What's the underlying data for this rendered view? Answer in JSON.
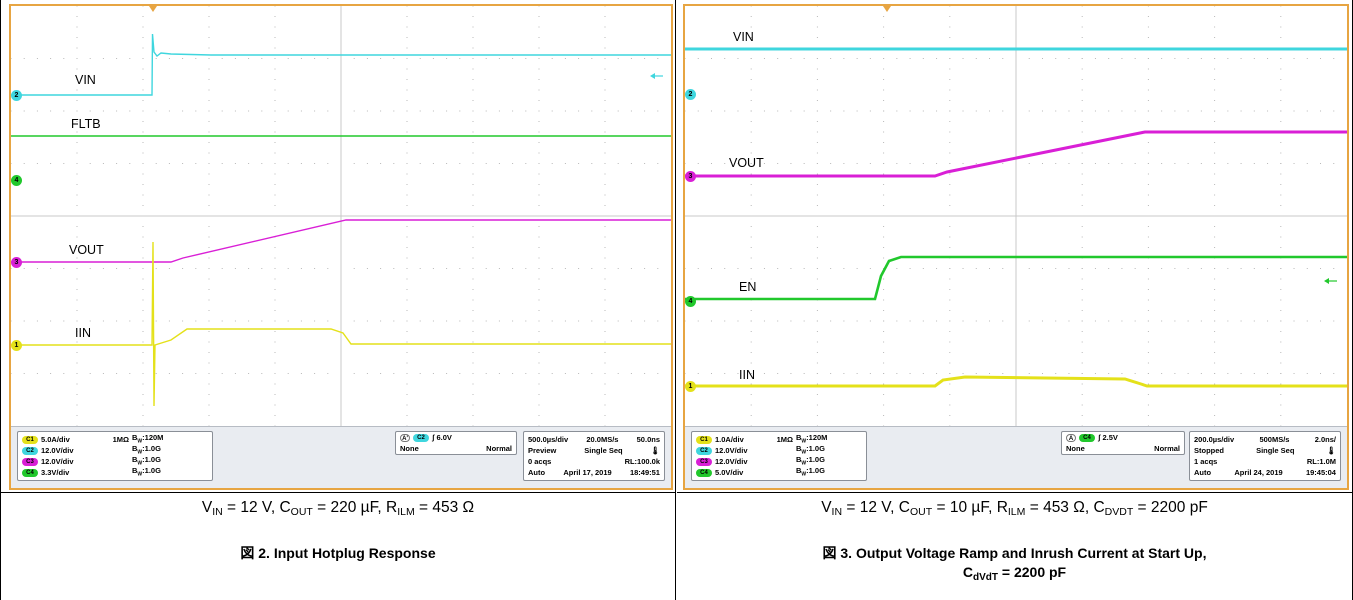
{
  "figures": [
    {
      "traces": [
        {
          "name": "VIN",
          "color": "#3fd6de"
        },
        {
          "name": "FLTB",
          "color": "#21c82c"
        },
        {
          "name": "VOUT",
          "color": "#d91fd6"
        },
        {
          "name": "IIN",
          "color": "#e4e11a"
        }
      ],
      "channel_markers": [
        "2",
        "4",
        "3",
        "1"
      ],
      "vertical_settings": [
        {
          "ch": "C1",
          "color": "#e4e11a",
          "scale": "5.0A/div",
          "impedance": "1MΩ",
          "bw": "120M"
        },
        {
          "ch": "C2",
          "color": "#3fd6de",
          "scale": "12.0V/div",
          "impedance": "",
          "bw": "1.0G"
        },
        {
          "ch": "C3",
          "color": "#d91fd6",
          "scale": "12.0V/div",
          "impedance": "",
          "bw": "1.0G"
        },
        {
          "ch": "C4",
          "color": "#21c82c",
          "scale": "3.3V/div",
          "impedance": "",
          "bw": "1.0G"
        }
      ],
      "bw_prefix": "B",
      "bw_sub": "W",
      "bw_colon": ":",
      "trigger": {
        "type": "A'",
        "source": "C2",
        "level": "6.0V",
        "holdoff": "None",
        "mode": "Normal",
        "source_color": "#3fd6de"
      },
      "timebase": {
        "scale": "500.0µs/div",
        "rate": "20.0MS/s",
        "resolution": "50.0ns",
        "state": "Preview",
        "seq": "Single Seq",
        "acqs": "0 acqs",
        "rl": "RL:100.0k",
        "auto": "Auto",
        "date": "April 17, 2019",
        "time": "18:49:51"
      },
      "conditions": {
        "vin_sym": "V",
        "vin_sub": "IN",
        "vin_val": " = 12 V, ",
        "cout_sym": "C",
        "cout_sub": "OUT",
        "cout_val": " = 220 µF, ",
        "rilm_sym": "R",
        "rilm_sub": "ILM",
        "rilm_val": " = 453 Ω"
      },
      "caption": {
        "prefix": "図 2.",
        "text": "Input Hotplug Response"
      }
    },
    {
      "traces": [
        {
          "name": "VIN",
          "color": "#3fd6de"
        },
        {
          "name": "VOUT",
          "color": "#d91fd6"
        },
        {
          "name": "EN",
          "color": "#21c82c"
        },
        {
          "name": "IIN",
          "color": "#e4e11a"
        }
      ],
      "channel_markers": [
        "2",
        "3",
        "4",
        "1"
      ],
      "vertical_settings": [
        {
          "ch": "C1",
          "color": "#e4e11a",
          "scale": "1.0A/div",
          "impedance": "1MΩ",
          "bw": "120M"
        },
        {
          "ch": "C2",
          "color": "#3fd6de",
          "scale": "12.0V/div",
          "impedance": "",
          "bw": "1.0G"
        },
        {
          "ch": "C3",
          "color": "#d91fd6",
          "scale": "12.0V/div",
          "impedance": "",
          "bw": "1.0G"
        },
        {
          "ch": "C4",
          "color": "#21c82c",
          "scale": "5.0V/div",
          "impedance": "",
          "bw": "1.0G"
        }
      ],
      "bw_prefix": "B",
      "bw_sub": "W",
      "bw_colon": ":",
      "trigger": {
        "type": "A",
        "source": "C4",
        "level": "2.5V",
        "holdoff": "None",
        "mode": "Normal",
        "source_color": "#21c82c"
      },
      "timebase": {
        "scale": "200.0µs/div",
        "rate": "500MS/s",
        "resolution": "2.0ns/",
        "state": "Stopped",
        "seq": "Single Seq",
        "acqs": "1 acqs",
        "rl": "RL:1.0M",
        "auto": "Auto",
        "date": "April 24, 2019",
        "time": "19:45:04"
      },
      "conditions": {
        "vin_sym": "V",
        "vin_sub": "IN",
        "vin_val": " = 12 V, ",
        "cout_sym": "C",
        "cout_sub": "OUT",
        "cout_val": " = 10 µF, ",
        "rilm_sym": "R",
        "rilm_sub": "ILM",
        "rilm_val": " = 453 Ω, ",
        "cdvdt_sym": "C",
        "cdvdt_sub": "DVDT",
        "cdvdt_val": " = 2200 pF"
      },
      "caption": {
        "prefix": "図 3.",
        "text": "Output Voltage Ramp and Inrush Current at Start Up,",
        "line2_sym": "C",
        "line2_sub": "dVdT",
        "line2_val": " = 2200 pF"
      }
    }
  ],
  "icons": {
    "trigger_marker": "triangle-down-icon",
    "slope": "rising-edge-icon",
    "ref_arrow": "left-arrow-icon"
  }
}
